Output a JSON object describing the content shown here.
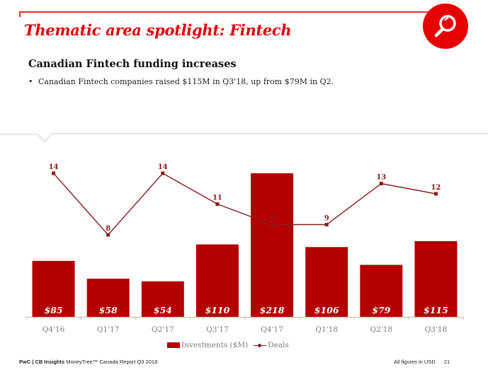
{
  "header": {
    "title": "Thematic area spotlight: Fintech",
    "badge_icon": "magnifying-glass-icon"
  },
  "content": {
    "subtitle": "Canadian Fintech funding increases",
    "bullets": [
      "Canadian Fintech companies raised $115M in Q3'18, up from $79M in Q2."
    ]
  },
  "colors": {
    "brand_red": "#e0301e",
    "bar": "#b30000",
    "line": "#8b1a1a",
    "axis": "#c8c0a8"
  },
  "chart_data": {
    "type": "bar",
    "title": "",
    "xlabel": "",
    "ylabel": "",
    "categories": [
      "Q4'16",
      "Q1'17",
      "Q2'17",
      "Q3'17",
      "Q4'17",
      "Q1'18",
      "Q2'18",
      "Q3'18"
    ],
    "series": [
      {
        "name": "Investments ($M)",
        "type": "bar",
        "values": [
          85,
          58,
          54,
          110,
          218,
          106,
          79,
          115
        ],
        "labels": [
          "$85",
          "$58",
          "$54",
          "$110",
          "$218",
          "$106",
          "$79",
          "$115"
        ]
      },
      {
        "name": "Deals",
        "type": "line",
        "values": [
          14,
          8,
          14,
          11,
          9,
          9,
          13,
          12
        ],
        "labels": [
          "14",
          "8",
          "14",
          "11",
          "9",
          "9",
          "13",
          "12"
        ]
      }
    ],
    "bar_ylim": [
      0,
      218
    ],
    "line_ylim": [
      8,
      14
    ],
    "grid": false,
    "legend": "bottom-center"
  },
  "legend": {
    "investments": "Investments ($M)",
    "deals": "Deals"
  },
  "footer": {
    "brand": "PwC | CB Insights",
    "report": "MoneyTree™ Canada Report Q3 2018",
    "note": "All figures in USD",
    "page": "21"
  }
}
